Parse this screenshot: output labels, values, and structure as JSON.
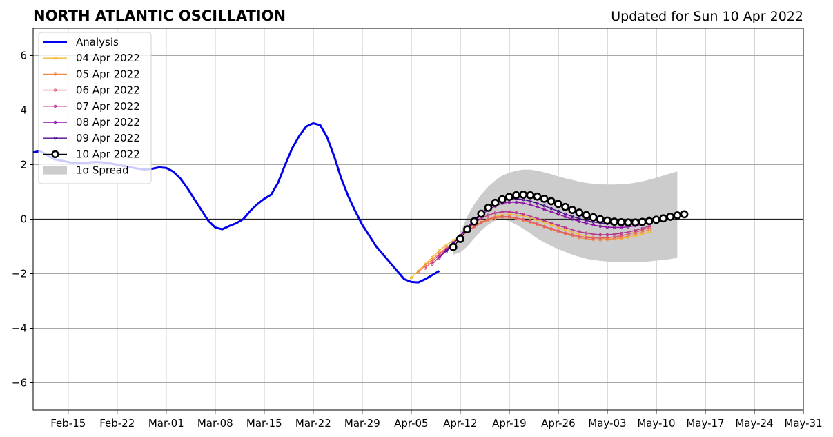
{
  "chart_data": {
    "type": "line",
    "title": "NORTH ATLANTIC OSCILLATION",
    "subtitle": "Updated for Sun 10 Apr 2022",
    "xlabel": "",
    "ylabel": "",
    "x_range": [
      "2022-02-10",
      "2022-05-31"
    ],
    "ylim": [
      -7,
      7
    ],
    "y_ticks": [
      -6,
      -4,
      -2,
      0,
      2,
      4,
      6
    ],
    "y_tick_labels": [
      "−6",
      "−4",
      "−2",
      "0",
      "2",
      "4",
      "6"
    ],
    "x_ticks": [
      "2022-02-15",
      "2022-02-22",
      "2022-03-01",
      "2022-03-08",
      "2022-03-15",
      "2022-03-22",
      "2022-03-29",
      "2022-04-05",
      "2022-04-12",
      "2022-04-19",
      "2022-04-26",
      "2022-05-03",
      "2022-05-10",
      "2022-05-17",
      "2022-05-24",
      "2022-05-31"
    ],
    "x_tick_labels": [
      "Feb-15",
      "Feb-22",
      "Mar-01",
      "Mar-08",
      "Mar-15",
      "Mar-22",
      "Mar-29",
      "Apr-05",
      "Apr-12",
      "Apr-19",
      "Apr-26",
      "May-03",
      "May-10",
      "May-17",
      "May-24",
      "May-31"
    ],
    "grid": true,
    "legend_position": "top-left",
    "zero_line": true,
    "analysis": {
      "name": "Analysis",
      "color": "#0000ee",
      "start": "2022-02-10",
      "values": [
        2.45,
        2.5,
        2.35,
        2.2,
        2.15,
        2.1,
        2.05,
        2.05,
        2.08,
        2.1,
        2.08,
        2.05,
        2.0,
        1.95,
        1.9,
        1.85,
        1.82,
        1.85,
        1.9,
        1.88,
        1.75,
        1.5,
        1.15,
        0.75,
        0.35,
        -0.05,
        -0.3,
        -0.37,
        -0.25,
        -0.15,
        0.0,
        0.3,
        0.55,
        0.75,
        0.9,
        1.35,
        2.0,
        2.6,
        3.05,
        3.4,
        3.52,
        3.45,
        3.0,
        2.3,
        1.5,
        0.85,
        0.3,
        -0.2,
        -0.6,
        -1.0,
        -1.3,
        -1.6,
        -1.9,
        -2.2,
        -2.3,
        -2.32,
        -2.2,
        -2.05,
        -1.9
      ]
    },
    "spread": {
      "name": "1σ Spread",
      "color": "#cccccc",
      "start": "2022-04-11",
      "upper": [
        -1.0,
        -0.5,
        0.1,
        0.55,
        0.9,
        1.2,
        1.42,
        1.6,
        1.7,
        1.78,
        1.82,
        1.82,
        1.78,
        1.72,
        1.65,
        1.57,
        1.5,
        1.44,
        1.38,
        1.33,
        1.3,
        1.28,
        1.27,
        1.27,
        1.28,
        1.3,
        1.34,
        1.39,
        1.45,
        1.52,
        1.6,
        1.68,
        1.75
      ],
      "lower": [
        -1.3,
        -1.22,
        -1.0,
        -0.7,
        -0.42,
        -0.2,
        -0.05,
        0.0,
        -0.07,
        -0.2,
        -0.35,
        -0.52,
        -0.7,
        -0.85,
        -0.98,
        -1.1,
        -1.2,
        -1.3,
        -1.38,
        -1.45,
        -1.5,
        -1.53,
        -1.55,
        -1.57,
        -1.58,
        -1.58,
        -1.58,
        -1.57,
        -1.55,
        -1.52,
        -1.5,
        -1.46,
        -1.42
      ]
    },
    "series": [
      {
        "name": "04 Apr 2022",
        "color": "#f5b730",
        "start": "2022-04-05",
        "values": [
          -2.15,
          -1.9,
          -1.65,
          -1.4,
          -1.15,
          -0.95,
          -0.78,
          -0.6,
          -0.42,
          -0.25,
          -0.1,
          0.02,
          0.1,
          0.15,
          0.17,
          0.16,
          0.12,
          0.05,
          -0.02,
          -0.1,
          -0.2,
          -0.3,
          -0.4,
          -0.48,
          -0.56,
          -0.62,
          -0.67,
          -0.7,
          -0.72,
          -0.72,
          -0.7,
          -0.67,
          -0.62,
          -0.55,
          -0.47
        ]
      },
      {
        "name": "05 Apr 2022",
        "color": "#f08a4b",
        "start": "2022-04-06",
        "values": [
          -1.95,
          -1.7,
          -1.48,
          -1.25,
          -1.05,
          -0.85,
          -0.65,
          -0.45,
          -0.28,
          -0.14,
          -0.03,
          0.04,
          0.07,
          0.06,
          0.02,
          -0.04,
          -0.12,
          -0.2,
          -0.28,
          -0.37,
          -0.46,
          -0.54,
          -0.62,
          -0.68,
          -0.72,
          -0.75,
          -0.76,
          -0.75,
          -0.72,
          -0.68,
          -0.62,
          -0.55,
          -0.47,
          -0.38
        ]
      },
      {
        "name": "06 Apr 2022",
        "color": "#e05a6d",
        "start": "2022-04-07",
        "values": [
          -1.8,
          -1.55,
          -1.3,
          -1.1,
          -0.88,
          -0.66,
          -0.45,
          -0.27,
          -0.12,
          0.0,
          0.07,
          0.1,
          0.09,
          0.05,
          -0.01,
          -0.09,
          -0.17,
          -0.26,
          -0.35,
          -0.43,
          -0.51,
          -0.58,
          -0.63,
          -0.67,
          -0.69,
          -0.69,
          -0.68,
          -0.65,
          -0.61,
          -0.55,
          -0.48,
          -0.4,
          -0.3
        ]
      },
      {
        "name": "07 Apr 2022",
        "color": "#b83289",
        "start": "2022-04-08",
        "values": [
          -1.65,
          -1.38,
          -1.12,
          -0.86,
          -0.6,
          -0.37,
          -0.15,
          0.03,
          0.15,
          0.23,
          0.27,
          0.27,
          0.24,
          0.18,
          0.11,
          0.03,
          -0.05,
          -0.14,
          -0.23,
          -0.31,
          -0.39,
          -0.46,
          -0.51,
          -0.55,
          -0.57,
          -0.57,
          -0.55,
          -0.52,
          -0.47,
          -0.41,
          -0.34,
          -0.25
        ]
      },
      {
        "name": "08 Apr 2022",
        "color": "#8b0aa5",
        "start": "2022-04-09",
        "values": [
          -1.42,
          -1.15,
          -0.88,
          -0.6,
          -0.33,
          -0.08,
          0.15,
          0.34,
          0.48,
          0.58,
          0.62,
          0.62,
          0.59,
          0.53,
          0.45,
          0.36,
          0.27,
          0.18,
          0.09,
          0.0,
          -0.08,
          -0.15,
          -0.21,
          -0.26,
          -0.29,
          -0.3,
          -0.3,
          -0.28,
          -0.24,
          -0.19,
          -0.12
        ]
      },
      {
        "name": "09 Apr 2022",
        "color": "#4a0c8c",
        "start": "2022-04-10",
        "values": [
          -1.2,
          -0.9,
          -0.6,
          -0.3,
          -0.02,
          0.22,
          0.43,
          0.58,
          0.69,
          0.74,
          0.75,
          0.72,
          0.66,
          0.58,
          0.49,
          0.39,
          0.29,
          0.19,
          0.1,
          0.02,
          -0.05,
          -0.1,
          -0.14,
          -0.16,
          -0.16,
          -0.15,
          -0.12,
          -0.08,
          -0.02,
          0.05
        ]
      },
      {
        "name": "10 Apr 2022",
        "color": "#000000",
        "start": "2022-04-11",
        "values": [
          -1.02,
          -0.72,
          -0.37,
          -0.08,
          0.2,
          0.42,
          0.6,
          0.73,
          0.82,
          0.88,
          0.9,
          0.88,
          0.83,
          0.75,
          0.66,
          0.56,
          0.45,
          0.34,
          0.24,
          0.15,
          0.07,
          0.0,
          -0.05,
          -0.09,
          -0.11,
          -0.12,
          -0.12,
          -0.1,
          -0.07,
          -0.02,
          0.03,
          0.09,
          0.14,
          0.18
        ]
      }
    ]
  }
}
